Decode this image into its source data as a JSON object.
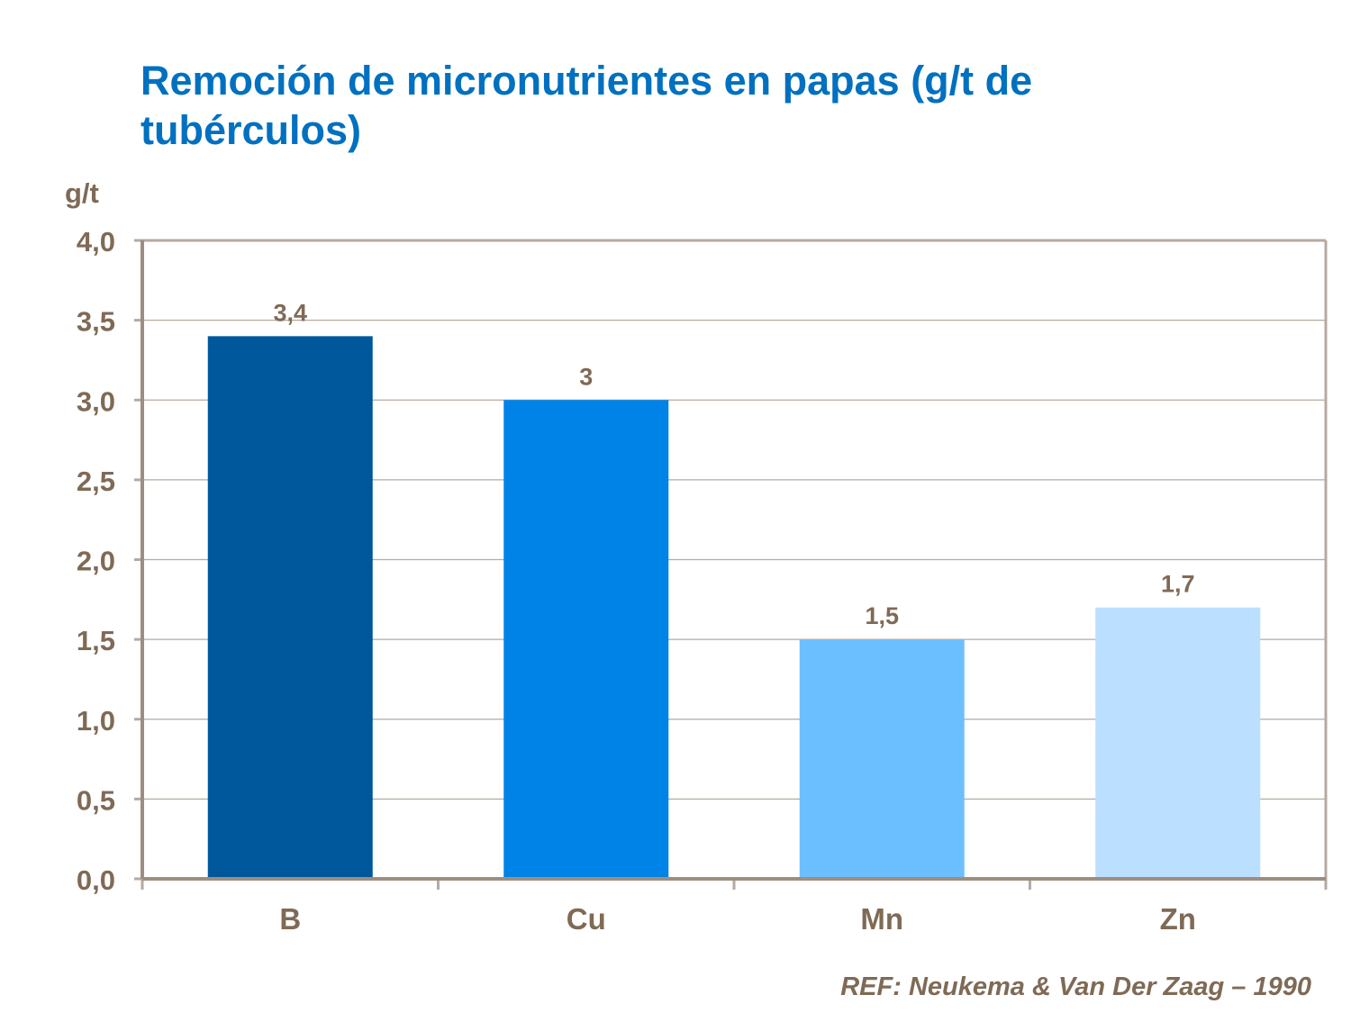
{
  "chart_data": {
    "type": "bar",
    "title": "Remoción de micronutrientes en papas (g/t de tubérculos)",
    "ylabel": "g/t",
    "xlabel": "",
    "categories": [
      "B",
      "Cu",
      "Mn",
      "Zn"
    ],
    "values": [
      3.4,
      3,
      1.5,
      1.7
    ],
    "data_labels": [
      "3,4",
      "3",
      "1,5",
      "1,7"
    ],
    "bar_colors": [
      "#00589C",
      "#0083E6",
      "#6BBFFF",
      "#BBDFFF"
    ],
    "ylim": [
      0,
      4
    ],
    "yticks": [
      0,
      0.5,
      1,
      1.5,
      2,
      2.5,
      3,
      3.5,
      4
    ],
    "ytick_labels": [
      "0,0",
      "0,5",
      "1,0",
      "1,5",
      "2,0",
      "2,5",
      "3,0",
      "3,5",
      "4,0"
    ],
    "grid": true,
    "legend": "none",
    "annotation": "REF: Neukema  & Van Der Zaag – 1990"
  }
}
